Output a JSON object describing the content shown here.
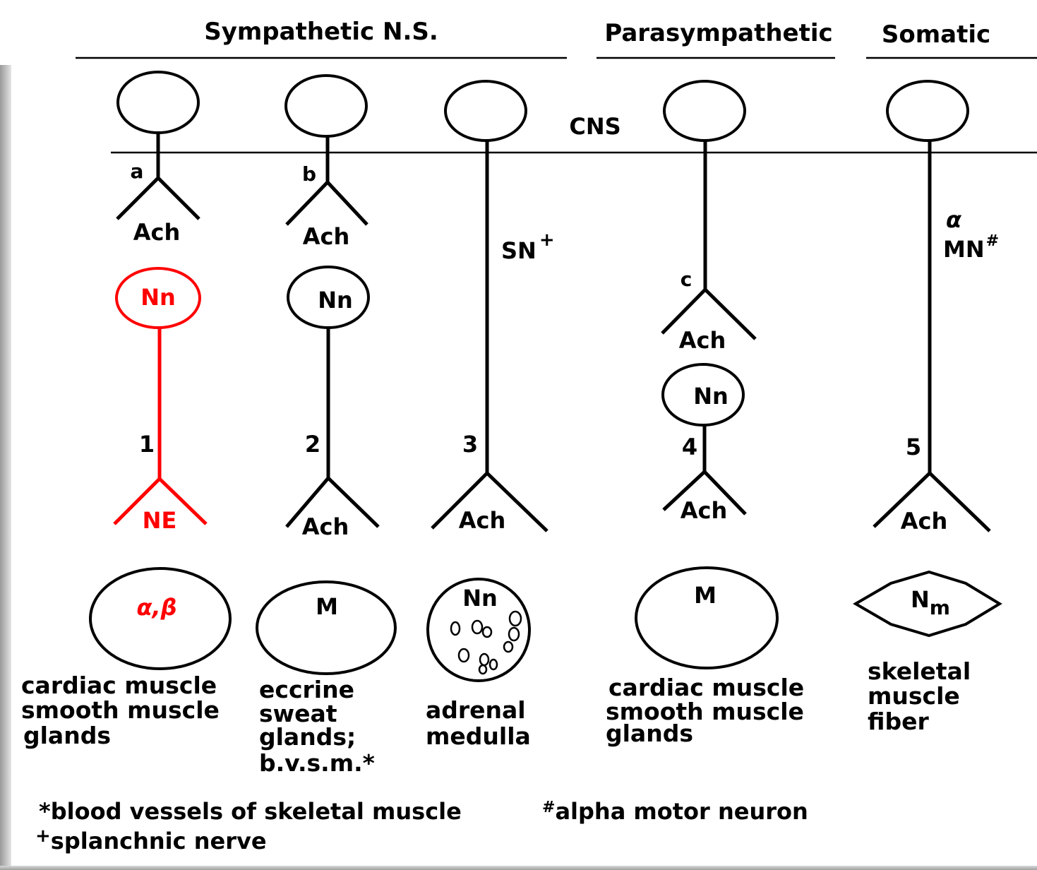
{
  "headers": {
    "sympathetic": "Sympathetic N.S.",
    "parasympathetic": "Parasympathetic",
    "somatic": "Somatic"
  },
  "cns_label": "CNS",
  "pathways": {
    "p1": {
      "letter": "a",
      "pre_nt": "Ach",
      "ganglion": "Nn",
      "number": "1",
      "post_nt": "NE",
      "receptor": "α,β",
      "target": [
        "cardiac muscle",
        "smooth muscle",
        "glands"
      ],
      "highlight_color": "#ff0000"
    },
    "p2": {
      "letter": "b",
      "pre_nt": "Ach",
      "ganglion": "Nn",
      "number": "2",
      "post_nt": "Ach",
      "receptor": "M",
      "target": [
        "eccrine",
        "sweat",
        "glands;",
        "b.v.s.m.*"
      ]
    },
    "p3": {
      "nerve": "SN",
      "nerve_mark": "+",
      "number": "3",
      "post_nt": "Ach",
      "receptor": "Nn",
      "target": [
        "adrenal",
        "medulla"
      ]
    },
    "p4": {
      "letter": "c",
      "pre_nt": "Ach",
      "ganglion": "Nn",
      "number": "4",
      "post_nt": "Ach",
      "receptor": "M",
      "target": [
        "cardiac muscle",
        "smooth muscle",
        "glands"
      ]
    },
    "p5": {
      "nerve_greek": "α",
      "nerve": "MN",
      "nerve_mark": "#",
      "number": "5",
      "post_nt": "Ach",
      "receptor_main": "N",
      "receptor_sub": "m",
      "target": [
        "skeletal",
        "muscle",
        "fiber"
      ]
    }
  },
  "footnotes": {
    "star": "*blood vessels of skeletal muscle",
    "hash_mark": "#",
    "hash": "alpha motor neuron",
    "plus_mark": "+",
    "plus": "splanchnic nerve"
  }
}
